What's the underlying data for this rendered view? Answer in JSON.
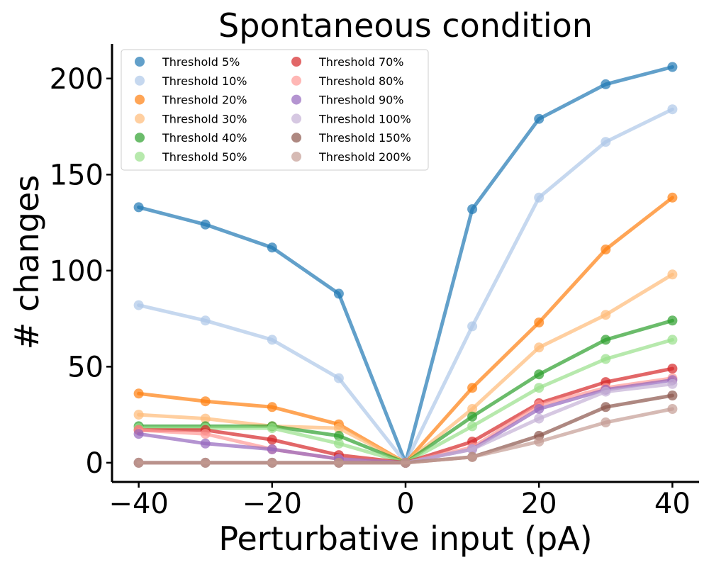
{
  "chart_data": {
    "type": "line",
    "title": "Spontaneous condition",
    "xlabel": "Perturbative input (pA)",
    "ylabel": "# changes",
    "x": [
      -40,
      -30,
      -20,
      -10,
      0,
      10,
      20,
      30,
      40
    ],
    "xlim": [
      -44,
      44
    ],
    "ylim": [
      -10,
      218
    ],
    "xticks": [
      -40,
      -20,
      0,
      20,
      40
    ],
    "xtick_labels": [
      "−40",
      "−20",
      "0",
      "20",
      "40"
    ],
    "yticks": [
      0,
      50,
      100,
      150,
      200
    ],
    "ytick_labels": [
      "0",
      "50",
      "100",
      "150",
      "200"
    ],
    "grid": false,
    "legend": {
      "placement": "top-left",
      "columns": 2
    },
    "series": [
      {
        "name": "Threshold 5%",
        "color": "#1f77b4",
        "values": [
          133,
          124,
          112,
          88,
          0,
          132,
          179,
          197,
          206
        ]
      },
      {
        "name": "Threshold 10%",
        "color": "#aec7e8",
        "values": [
          82,
          74,
          64,
          44,
          0,
          71,
          138,
          167,
          184
        ]
      },
      {
        "name": "Threshold 20%",
        "color": "#ff7f0e",
        "values": [
          36,
          32,
          29,
          20,
          0,
          39,
          73,
          111,
          138
        ]
      },
      {
        "name": "Threshold 30%",
        "color": "#ffbb78",
        "values": [
          25,
          23,
          19,
          18,
          0,
          28,
          60,
          77,
          98
        ]
      },
      {
        "name": "Threshold 40%",
        "color": "#2ca02c",
        "values": [
          19,
          19,
          19,
          14,
          0,
          24,
          46,
          64,
          74
        ]
      },
      {
        "name": "Threshold 50%",
        "color": "#98df8a",
        "values": [
          18,
          18,
          18,
          10,
          0,
          19,
          39,
          54,
          64
        ]
      },
      {
        "name": "Threshold 70%",
        "color": "#d62728",
        "values": [
          17,
          17,
          12,
          4,
          0,
          11,
          31,
          42,
          49
        ]
      },
      {
        "name": "Threshold 80%",
        "color": "#ff9896",
        "values": [
          17,
          15,
          7,
          2,
          0,
          8,
          30,
          39,
          44
        ]
      },
      {
        "name": "Threshold 90%",
        "color": "#9467bd",
        "values": [
          15,
          10,
          7,
          2,
          0,
          7,
          28,
          38,
          43
        ]
      },
      {
        "name": "Threshold 100%",
        "color": "#c5b0d5",
        "values": [
          0,
          0,
          0,
          0,
          0,
          7,
          23,
          37,
          41
        ]
      },
      {
        "name": "Threshold 150%",
        "color": "#8c564b",
        "values": [
          0,
          0,
          0,
          0,
          0,
          3,
          14,
          29,
          35
        ]
      },
      {
        "name": "Threshold 200%",
        "color": "#c49c94",
        "values": [
          0,
          0,
          0,
          0,
          0,
          3,
          11,
          21,
          28
        ]
      }
    ]
  }
}
